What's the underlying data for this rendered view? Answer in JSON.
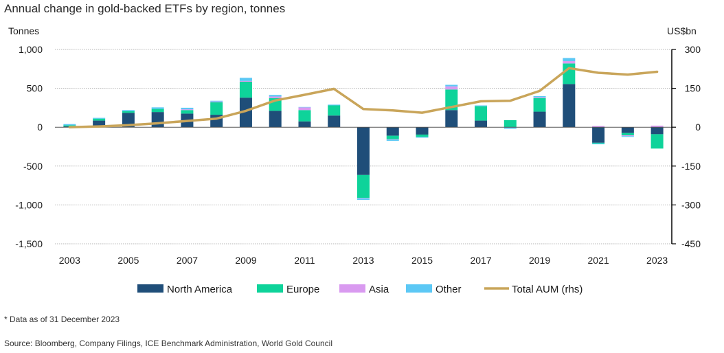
{
  "title": "Annual change in gold-backed ETFs by region, tonnes",
  "footnote": "* Data as of 31 December 2023",
  "source": "Source: Bloomberg, Company Filings, ICE Benchmark Administration, World Gold Council",
  "colors": {
    "North America": "#1f4e79",
    "Europe": "#0ed39a",
    "Asia": "#d99af0",
    "Other": "#5cc8f5",
    "Total AUM (rhs)": "#c9a55a"
  },
  "chart_data": {
    "type": "bar",
    "stacked": true,
    "title": "Annual change in gold-backed ETFs by region, tonnes",
    "ylabel": "Tonnes",
    "y2label": "US$bn",
    "ylim": [
      -1500,
      1000
    ],
    "y2lim": [
      -450,
      300
    ],
    "yticks": [
      1000,
      500,
      0,
      -500,
      -1000,
      -1500
    ],
    "ytick_labels": [
      "1,000",
      "500",
      "0",
      "-500",
      "-1,000",
      "-1,500"
    ],
    "y2ticks": [
      300,
      150,
      0,
      -150,
      -300,
      -450
    ],
    "y2tick_labels": [
      "300",
      "150",
      "0",
      "-150",
      "-300",
      "-450"
    ],
    "categories": [
      "2003",
      "2004",
      "2005",
      "2006",
      "2007",
      "2008",
      "2009",
      "2010",
      "2011",
      "2012",
      "2013",
      "2014",
      "2015",
      "2016",
      "2017",
      "2018",
      "2019",
      "2020",
      "2021",
      "2022",
      "2023"
    ],
    "xtick_labels": [
      "2003",
      "",
      "2005",
      "",
      "2007",
      "",
      "2009",
      "",
      "2011",
      "",
      "2013",
      "",
      "2015",
      "",
      "2017",
      "",
      "2019",
      "",
      "2021",
      "",
      "2023"
    ],
    "grid": true,
    "legend_position": "bottom",
    "series": [
      {
        "name": "North America",
        "values": [
          10,
          85,
          185,
          195,
          175,
          160,
          380,
          210,
          75,
          150,
          -615,
          -110,
          -95,
          220,
          85,
          0,
          200,
          555,
          -200,
          -75,
          -90
        ]
      },
      {
        "name": "Europe",
        "values": [
          15,
          25,
          20,
          40,
          45,
          160,
          205,
          165,
          145,
          130,
          -295,
          -45,
          -30,
          265,
          185,
          90,
          175,
          265,
          -10,
          -30,
          -185
        ]
      },
      {
        "name": "Asia",
        "values": [
          0,
          0,
          0,
          0,
          10,
          10,
          10,
          20,
          35,
          0,
          -5,
          -5,
          0,
          40,
          0,
          0,
          10,
          30,
          15,
          -10,
          20
        ]
      },
      {
        "name": "Other",
        "values": [
          15,
          10,
          15,
          20,
          20,
          10,
          40,
          20,
          5,
          10,
          -20,
          -15,
          -10,
          20,
          10,
          -20,
          15,
          40,
          -10,
          -10,
          0
        ]
      },
      {
        "name": "Total AUM (rhs)",
        "type": "line",
        "axis": "right",
        "values": [
          0,
          3,
          8,
          15,
          24,
          33,
          63,
          103,
          125,
          148,
          70,
          65,
          56,
          78,
          100,
          102,
          140,
          228,
          210,
          203,
          214
        ]
      }
    ]
  }
}
